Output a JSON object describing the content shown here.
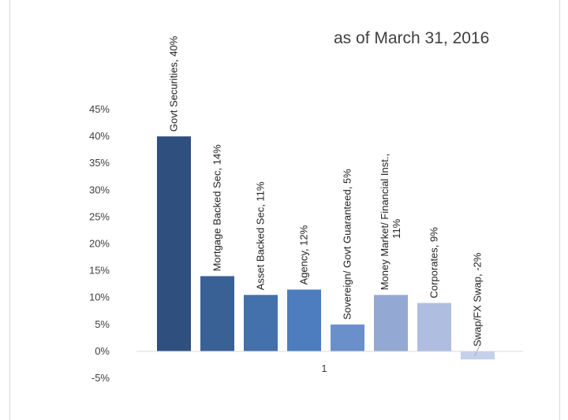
{
  "chart_data": {
    "type": "bar",
    "annotation": "as of March 31, 2016",
    "categories": [
      "1"
    ],
    "series": [
      {
        "name": "Govt Securities",
        "value": 40,
        "color": "#2f4f7f",
        "label_lines": [
          "Govt Securities, 40%"
        ]
      },
      {
        "name": "Mortgage Backed Sec",
        "value": 14,
        "color": "#3a6195",
        "label_lines": [
          "Mortgage Backed Sec, 14%"
        ]
      },
      {
        "name": "Asset Backed Sec",
        "value": 10.5,
        "color": "#4470ab",
        "label_lines": [
          "Asset Backed Sec, 11%"
        ]
      },
      {
        "name": "Agency",
        "value": 11.5,
        "color": "#4d7dbf",
        "label_lines": [
          "Agency, 12%"
        ]
      },
      {
        "name": "Sovereign/ Govt Guaranteed",
        "value": 5,
        "color": "#6a8fcb",
        "label_lines": [
          "Sovereign/ Govt Guaranteed, 5%"
        ]
      },
      {
        "name": "Money Market/ Financial Inst.",
        "value": 10.5,
        "color": "#93a9d3",
        "label_lines": [
          "Money Market/ Financial Inst.,",
          "11%"
        ]
      },
      {
        "name": "Corporates",
        "value": 9,
        "color": "#aebde0",
        "label_lines": [
          "Corporates, 9%"
        ]
      },
      {
        "name": "Swap/FX Swap",
        "value": -1.5,
        "color": "#c5d0ea",
        "label_lines": [
          "Swap/FX Swap, -2%"
        ]
      }
    ],
    "y_ticks": [
      "45%",
      "40%",
      "35%",
      "30%",
      "25%",
      "20%",
      "15%",
      "10%",
      "5%",
      "0%",
      "-5%"
    ],
    "ylim": [
      -5,
      45
    ],
    "y_tick_step": 5,
    "grid": false,
    "legend": "none",
    "axis_line_color": "#d9d9d9"
  }
}
